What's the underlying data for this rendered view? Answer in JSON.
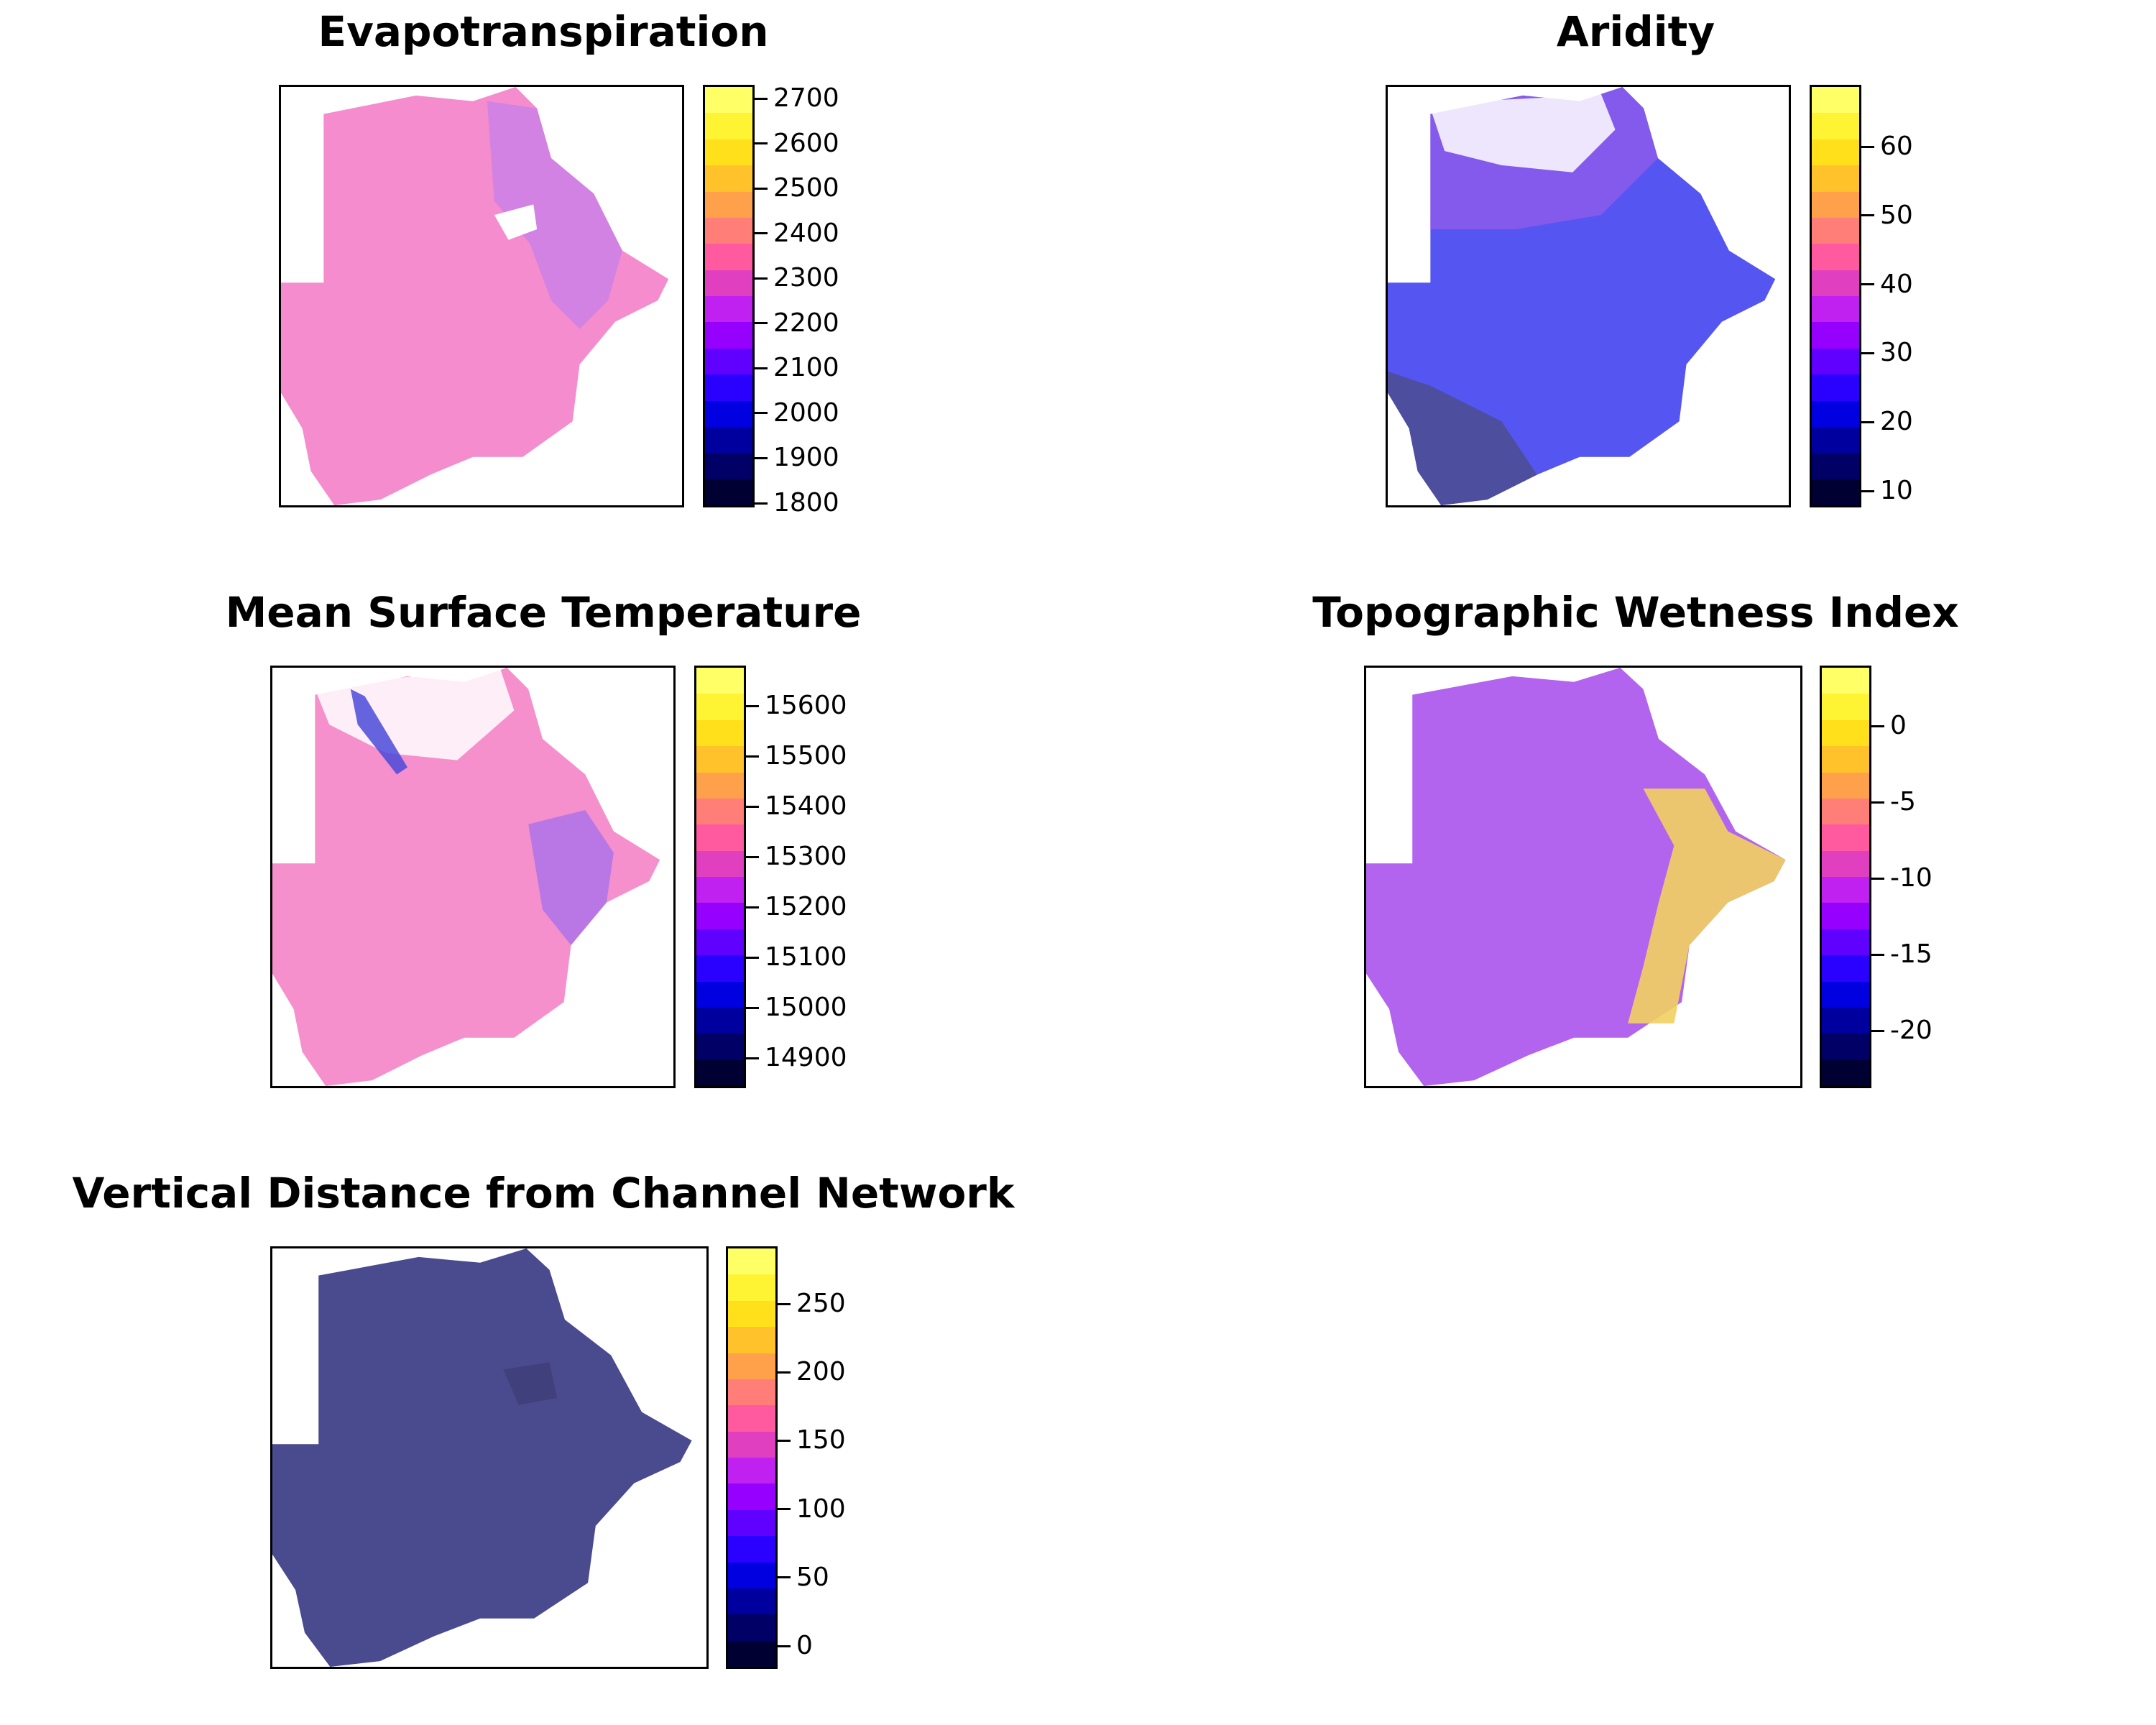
{
  "figure": {
    "colors": {
      "palette": [
        "#000033",
        "#000066",
        "#00009f",
        "#0000e0",
        "#2a00ff",
        "#6000ff",
        "#9500ff",
        "#c020f0",
        "#e040c0",
        "#ff5aa0",
        "#ff7f78",
        "#ffa04a",
        "#ffc22a",
        "#ffe01a",
        "#fff433",
        "#ffff66"
      ],
      "outline": "#000000"
    },
    "panels": [
      {
        "title": "Evapotranspiration",
        "legend": {
          "ticks": [
            "2700",
            "2600",
            "2500",
            "2400",
            "2300",
            "2200",
            "2100",
            "2000",
            "1900",
            "1800"
          ]
        },
        "map": {
          "fill_color": "#f48ccd",
          "accent_color": "#b57af4",
          "description_color_name": "pink-purple"
        }
      },
      {
        "title": "Aridity",
        "legend": {
          "ticks": [
            "60",
            "50",
            "40",
            "30",
            "20",
            "10"
          ]
        },
        "map": {
          "fill_color": "#5555f2",
          "accent_color": "#a35ee8",
          "description_color_name": "blue-purple"
        }
      },
      {
        "title": "Mean Surface Temperature",
        "legend": {
          "ticks": [
            "15600",
            "15500",
            "15400",
            "15300",
            "15200",
            "15100",
            "15000",
            "14900"
          ]
        },
        "map": {
          "fill_color": "#f590cc",
          "accent_color": "#9f6cf0",
          "description_color_name": "pink-purple"
        }
      },
      {
        "title": "Topographic Wetness Index",
        "legend": {
          "ticks": [
            "0",
            "-5",
            "-10",
            "-15",
            "-20"
          ]
        },
        "map": {
          "fill_color": "#b264ee",
          "accent_color": "#f2d060",
          "description_color_name": "purple-yellow"
        }
      },
      {
        "title": "Vertical Distance from Channel Network",
        "legend": {
          "ticks": [
            "250",
            "200",
            "150",
            "100",
            "50",
            "0"
          ]
        },
        "map": {
          "fill_color": "#4a4a8e",
          "accent_color": "#3d3d78",
          "description_color_name": "dark-slate-blue"
        }
      }
    ]
  }
}
